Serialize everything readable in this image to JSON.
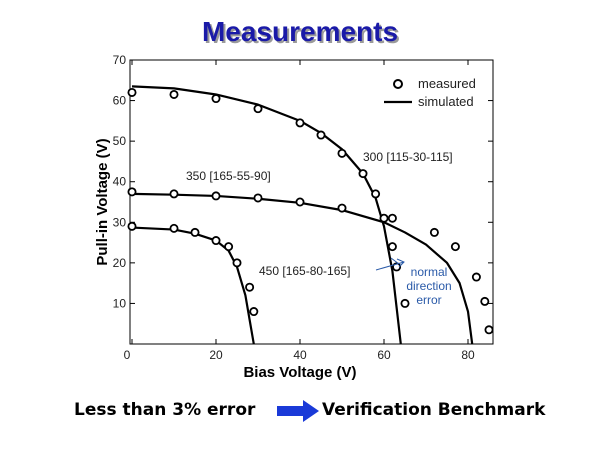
{
  "slide": {
    "title": "Measurements",
    "footer_left": "Less than 3% error",
    "footer_right": "Verification Benchmark",
    "arrow_color": "#1a3ad8"
  },
  "chart_data": {
    "type": "line",
    "xlabel": "Bias Voltage (V)",
    "ylabel": "Pull-in Voltage (V)",
    "xlim": [
      0,
      85
    ],
    "ylim": [
      0,
      70
    ],
    "xticks": [
      0,
      20,
      40,
      60,
      80
    ],
    "yticks": [
      10,
      20,
      30,
      40,
      50,
      60,
      70
    ],
    "grid": false,
    "legend": {
      "placement": "top-right",
      "entries": [
        {
          "label": "measured",
          "marker": "circle"
        },
        {
          "label": "simulated",
          "marker": "line"
        }
      ]
    },
    "annotations": [
      {
        "text": "300 [115-30-115]"
      },
      {
        "text": "350 [165-55-90]"
      },
      {
        "text": "450 [165-80-165]"
      },
      {
        "lines": [
          "normal",
          "direction",
          "error"
        ],
        "color": "#2a5aa8"
      }
    ],
    "series": [
      {
        "label_ref": 0,
        "measured": [
          [
            0,
            62
          ],
          [
            10,
            61.5
          ],
          [
            20,
            60.5
          ],
          [
            30,
            58
          ],
          [
            40,
            54.5
          ],
          [
            45,
            51.5
          ],
          [
            50,
            47
          ],
          [
            55,
            42
          ],
          [
            58,
            37
          ],
          [
            62,
            24
          ],
          [
            63,
            19
          ],
          [
            65,
            10
          ]
        ],
        "simulated": [
          [
            0,
            63.5
          ],
          [
            10,
            63
          ],
          [
            20,
            61.5
          ],
          [
            30,
            59
          ],
          [
            40,
            55
          ],
          [
            45,
            52
          ],
          [
            50,
            48
          ],
          [
            55,
            42
          ],
          [
            58,
            36
          ],
          [
            60,
            29
          ],
          [
            62,
            18
          ],
          [
            63,
            9
          ],
          [
            64,
            0
          ]
        ]
      },
      {
        "label_ref": 1,
        "measured": [
          [
            0,
            37.5
          ],
          [
            10,
            37
          ],
          [
            20,
            36.5
          ],
          [
            30,
            36
          ],
          [
            40,
            35
          ],
          [
            50,
            33.5
          ],
          [
            60,
            31
          ],
          [
            62,
            31
          ],
          [
            72,
            27.5
          ],
          [
            77,
            24
          ],
          [
            82,
            16.5
          ],
          [
            84,
            10.5
          ],
          [
            85,
            3.5
          ]
        ],
        "simulated": [
          [
            0,
            37
          ],
          [
            10,
            36.8
          ],
          [
            20,
            36.5
          ],
          [
            30,
            35.8
          ],
          [
            40,
            34.8
          ],
          [
            50,
            33
          ],
          [
            60,
            30
          ],
          [
            65,
            27.5
          ],
          [
            70,
            24.5
          ],
          [
            75,
            20
          ],
          [
            78,
            15
          ],
          [
            80,
            8
          ],
          [
            81,
            0
          ]
        ]
      },
      {
        "label_ref": 2,
        "measured": [
          [
            0,
            29
          ],
          [
            10,
            28.5
          ],
          [
            15,
            27.5
          ],
          [
            20,
            25.5
          ],
          [
            23,
            24
          ],
          [
            25,
            20
          ],
          [
            28,
            14
          ],
          [
            29,
            8
          ]
        ],
        "simulated": [
          [
            0,
            28.7
          ],
          [
            10,
            28.2
          ],
          [
            15,
            27.2
          ],
          [
            20,
            25.5
          ],
          [
            23,
            23
          ],
          [
            25,
            19
          ],
          [
            27,
            12
          ],
          [
            28,
            6
          ],
          [
            29,
            0
          ]
        ]
      }
    ]
  }
}
